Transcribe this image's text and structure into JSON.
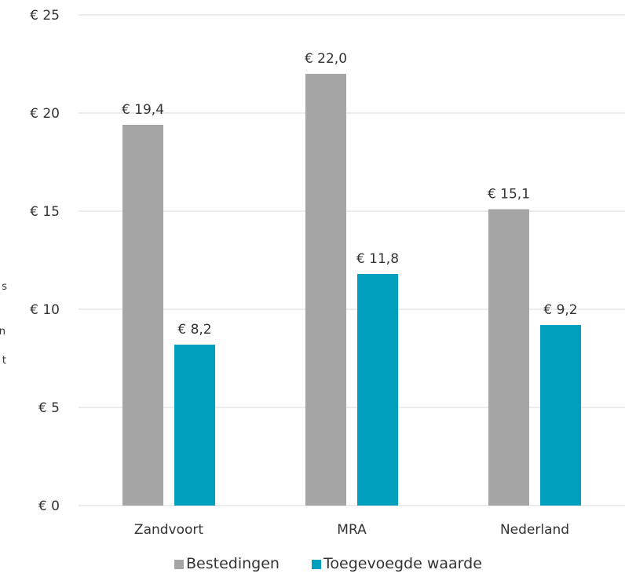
{
  "chart_data": {
    "type": "bar",
    "categories": [
      "Zandvoort",
      "MRA",
      "Nederland"
    ],
    "series": [
      {
        "name": "Bestedingen",
        "values": [
          19.4,
          22.0,
          15.1
        ],
        "labels": [
          "€ 19,4",
          "€ 22,0",
          "€ 15,1"
        ],
        "color": "#a5a5a5"
      },
      {
        "name": "Toegevoegde waarde",
        "values": [
          8.2,
          11.8,
          9.2
        ],
        "labels": [
          "€ 8,2",
          "€ 11,8",
          "€ 9,2"
        ],
        "color": "#009fbd"
      }
    ],
    "yticks": [
      0,
      5,
      10,
      15,
      20,
      25
    ],
    "ytick_labels": [
      "€ 0",
      "€ 5",
      "€ 10",
      "€ 15",
      "€ 20",
      "€ 25"
    ],
    "ylim": [
      0,
      25
    ],
    "grid": true,
    "legend": "bottom",
    "title": "",
    "xlabel": "",
    "ylabel": "",
    "ylabel_fragments": [
      "s",
      "n",
      "t"
    ],
    "gridline_color": "#d9d9d9"
  }
}
